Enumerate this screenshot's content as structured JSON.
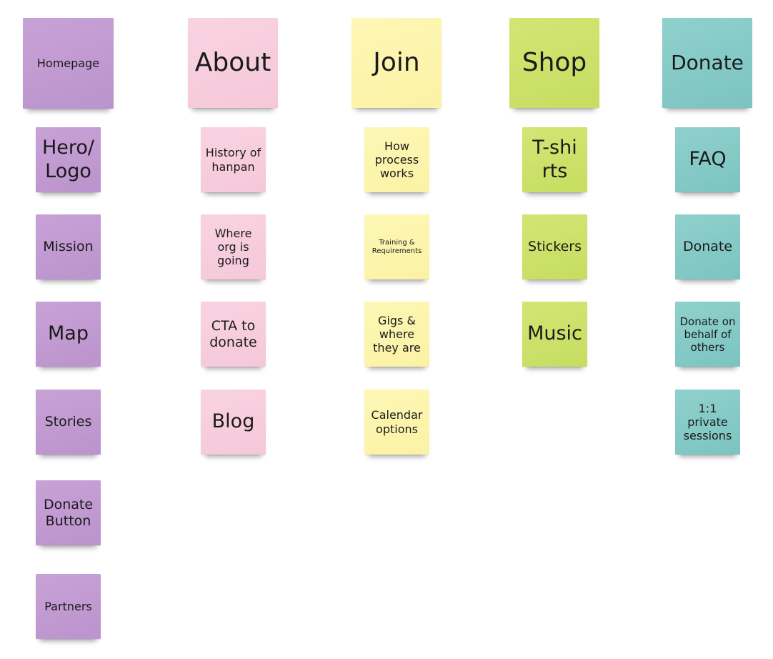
{
  "columns": [
    {
      "name": "homepage",
      "header": "Homepage",
      "cards": [
        "Hero/ Logo",
        "Mission",
        "Map",
        "Stories",
        "Donate Button",
        "Partners"
      ]
    },
    {
      "name": "about",
      "header": "About",
      "cards": [
        "History of hanpan",
        "Where org is going",
        "CTA to donate",
        "Blog"
      ]
    },
    {
      "name": "join",
      "header": "Join",
      "cards": [
        "How process works",
        "Training & Requirements",
        "Gigs & where they are",
        "Calendar options"
      ]
    },
    {
      "name": "shop",
      "header": "Shop",
      "cards": [
        "T-shirts",
        "Stickers",
        "Music"
      ]
    },
    {
      "name": "donate",
      "header": "Donate",
      "cards": [
        "FAQ",
        "Donate",
        "Donate on behalf of others",
        "1:1 private sessions"
      ]
    }
  ],
  "colors": {
    "purple": "#c09ad2",
    "pink": "#f7cddd",
    "yellow": "#fcf4ab",
    "green": "#cbe068",
    "teal": "#85cac6"
  }
}
